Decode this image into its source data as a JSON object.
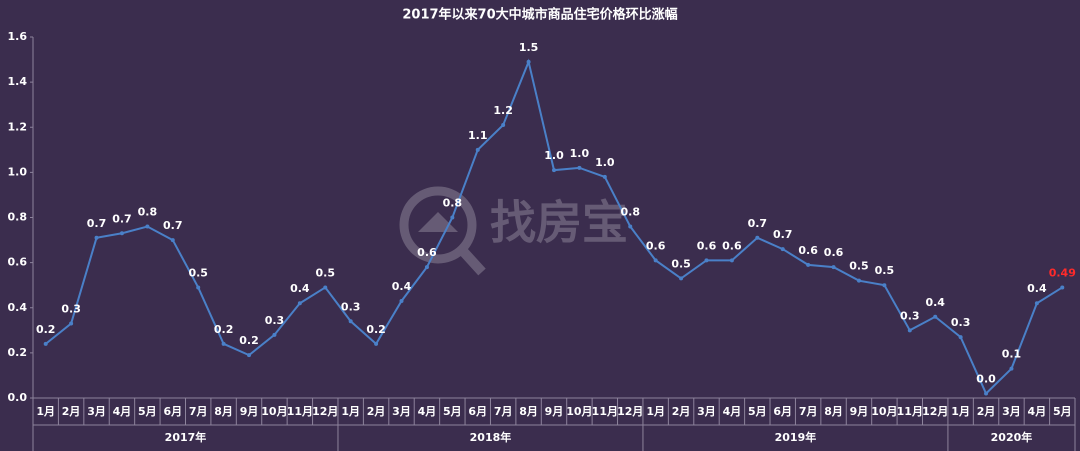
{
  "chart_data": {
    "type": "line",
    "title": "2017年以来70大中城市商品住宅价格环比涨幅",
    "watermark": "找房宝",
    "groups": [
      {
        "name": "2017年",
        "categories": [
          "1月",
          "2月",
          "3月",
          "4月",
          "5月",
          "6月",
          "7月",
          "8月",
          "9月",
          "10月",
          "11月",
          "12月"
        ]
      },
      {
        "name": "2018年",
        "categories": [
          "1月",
          "2月",
          "3月",
          "4月",
          "5月",
          "6月",
          "7月",
          "8月",
          "9月",
          "10月",
          "11月",
          "12月"
        ]
      },
      {
        "name": "2019年",
        "categories": [
          "1月",
          "2月",
          "3月",
          "4月",
          "5月",
          "6月",
          "7月",
          "8月",
          "9月",
          "10月",
          "11月",
          "12月"
        ]
      },
      {
        "name": "2020年",
        "categories": [
          "1月",
          "2月",
          "3月",
          "4月",
          "5月"
        ]
      }
    ],
    "series": [
      {
        "color": "#4a80c8",
        "values": [
          0.24,
          0.33,
          0.71,
          0.73,
          0.76,
          0.7,
          0.49,
          0.24,
          0.19,
          0.28,
          0.42,
          0.49,
          0.34,
          0.24,
          0.43,
          0.58,
          0.8,
          1.1,
          1.21,
          1.49,
          1.01,
          1.02,
          0.98,
          0.76,
          0.61,
          0.53,
          0.61,
          0.61,
          0.71,
          0.66,
          0.59,
          0.58,
          0.52,
          0.5,
          0.3,
          0.36,
          0.27,
          0.02,
          0.13,
          0.42,
          0.49
        ],
        "value_labels": [
          "0.2",
          "0.3",
          "0.7",
          "0.7",
          "0.8",
          "0.7",
          "0.5",
          "0.2",
          "0.2",
          "0.3",
          "0.4",
          "0.5",
          "0.3",
          "0.2",
          "0.4",
          "0.6",
          "0.8",
          "1.1",
          "1.2",
          "1.5",
          "1.0",
          "1.0",
          "1.0",
          "0.8",
          "0.6",
          "0.5",
          "0.6",
          "0.6",
          "0.7",
          "0.7",
          "0.6",
          "0.6",
          "0.5",
          "0.5",
          "0.3",
          "0.4",
          "0.3",
          "0.0",
          "0.1",
          "0.4",
          "0.49"
        ],
        "value_label_colors": [
          "#ffffff",
          "#ffffff",
          "#ffffff",
          "#ffffff",
          "#ffffff",
          "#ffffff",
          "#ffffff",
          "#ffffff",
          "#ffffff",
          "#ffffff",
          "#ffffff",
          "#ffffff",
          "#ffffff",
          "#ffffff",
          "#ffffff",
          "#ffffff",
          "#ffffff",
          "#ffffff",
          "#ffffff",
          "#ffffff",
          "#ffffff",
          "#ffffff",
          "#ffffff",
          "#ffffff",
          "#ffffff",
          "#ffffff",
          "#ffffff",
          "#ffffff",
          "#ffffff",
          "#ffffff",
          "#ffffff",
          "#ffffff",
          "#ffffff",
          "#ffffff",
          "#ffffff",
          "#ffffff",
          "#ffffff",
          "#ffffff",
          "#ffffff",
          "#ffffff",
          "#ff2a2a"
        ]
      }
    ],
    "ylim": [
      0,
      1.6
    ],
    "yticks": [
      {
        "value": 0,
        "label": "0.0"
      },
      0.2,
      0.4,
      0.6,
      0.8,
      {
        "value": 1,
        "label": "1.0"
      },
      1.2,
      1.4,
      1.6
    ],
    "grid": false
  }
}
